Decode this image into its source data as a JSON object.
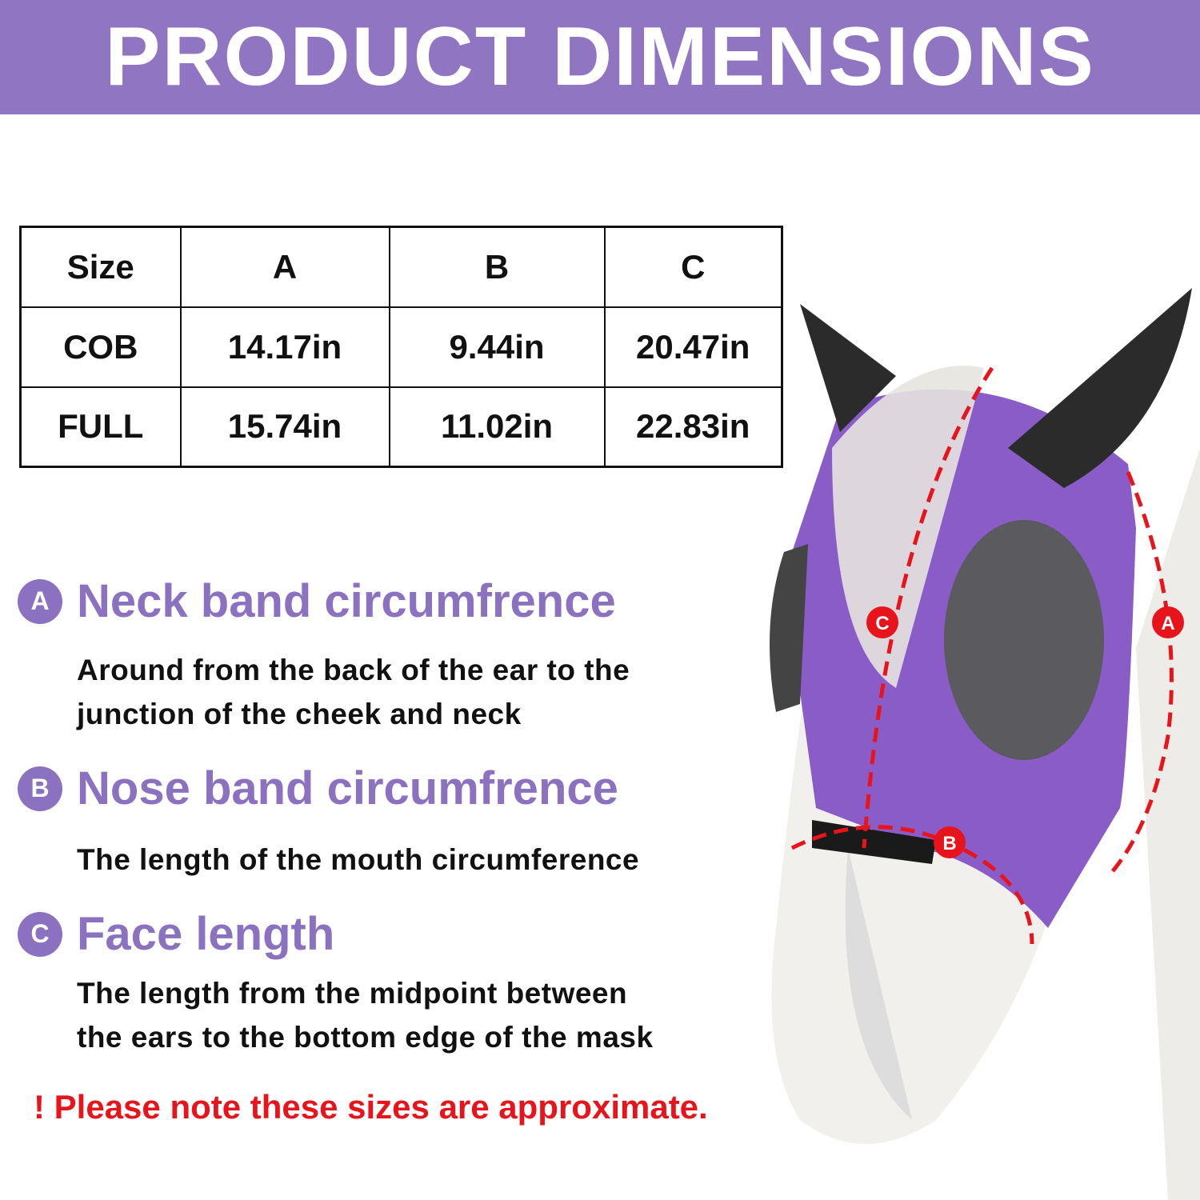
{
  "header": {
    "title": "PRODUCT DIMENSIONS"
  },
  "colors": {
    "accent": "#8f75c2",
    "warning": "#e8141c",
    "arrow": "#e8141c"
  },
  "table": {
    "headers": [
      "Size",
      "A",
      "B",
      "C"
    ],
    "rows": [
      [
        "COB",
        "14.17in",
        "9.44in",
        "20.47in"
      ],
      [
        "FULL",
        "15.74in",
        "11.02in",
        "22.83in"
      ]
    ]
  },
  "sections": [
    {
      "badge": "A",
      "title": "Neck band circumfrence",
      "desc": [
        "Around from the back of the ear to the",
        "junction of the cheek and neck"
      ]
    },
    {
      "badge": "B",
      "title": "Nose band circumfrence",
      "desc": [
        "The length of the mouth circumference"
      ]
    },
    {
      "badge": "C",
      "title": "Face length",
      "desc": [
        "The length from the midpoint between",
        "the ears to the bottom edge of the mask"
      ]
    }
  ],
  "note": "! Please note these sizes are approximate.",
  "image": {
    "labels": [
      "A",
      "B",
      "C"
    ]
  }
}
